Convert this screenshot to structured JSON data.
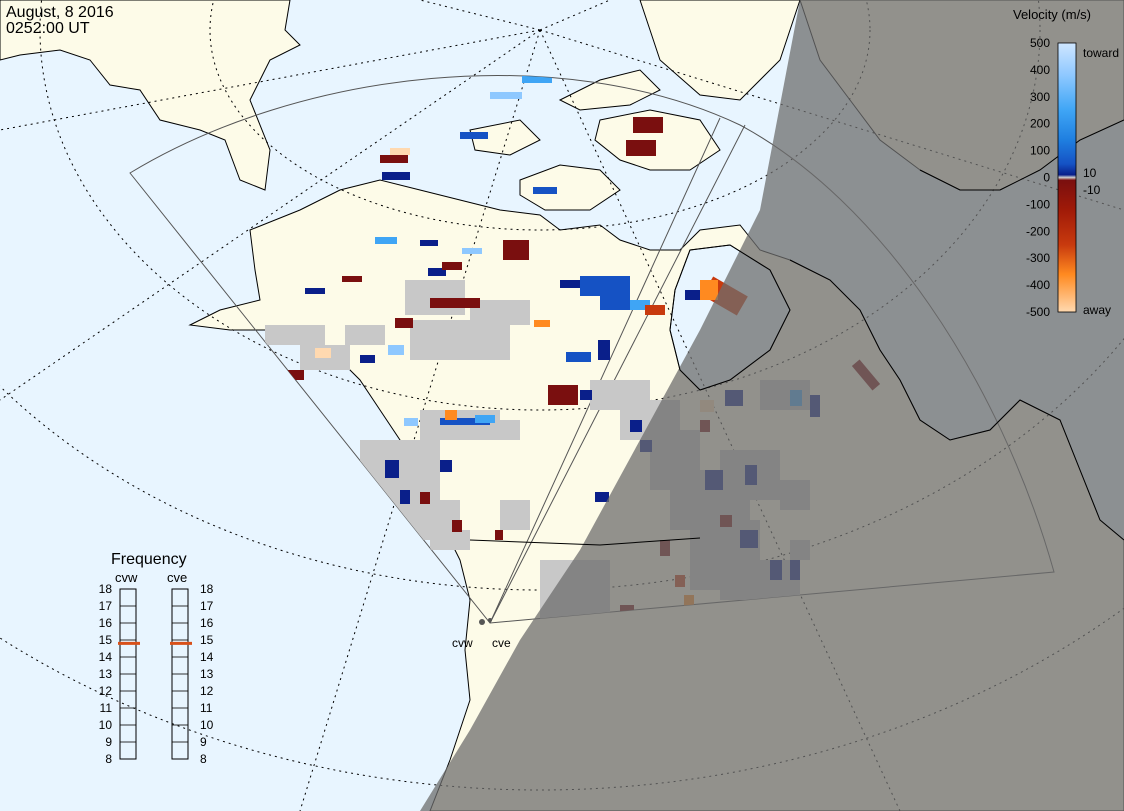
{
  "header": {
    "date": "August, 8 2016",
    "time": "0252:00 UT"
  },
  "colorbar": {
    "title": "Velocity (m/s)",
    "ticks": [
      "500",
      "400",
      "300",
      "200",
      "100",
      "0",
      "-100",
      "-200",
      "-300",
      "-400",
      "-500"
    ],
    "extra_ticks": [
      "10",
      "-10"
    ],
    "toward_label": "toward",
    "away_label": "away",
    "colors": [
      "#cfe6ff",
      "#8ec8ff",
      "#3fa5f5",
      "#1f7fe0",
      "#1552c4",
      "#0a1f8a",
      "#d0d0d0",
      "#7a0f0f",
      "#a01a08",
      "#c83a0e",
      "#e86010",
      "#ffa040",
      "#ffd9b0"
    ]
  },
  "frequency": {
    "title": "Frequency",
    "radars": [
      {
        "name": "cvw",
        "value_mhz": 14.8
      },
      {
        "name": "cve",
        "value_mhz": 14.8
      }
    ],
    "scale": [
      "18",
      "17",
      "16",
      "15",
      "14",
      "13",
      "12",
      "11",
      "10",
      "9",
      "8"
    ]
  },
  "sites": [
    {
      "name": "cvw"
    },
    {
      "name": "cve"
    }
  ],
  "map_colors": {
    "ocean": "#e8f5ff",
    "land": "#fdfbe8",
    "night": "#8f8f8f",
    "ground_scatter": "#c8c8c8"
  }
}
